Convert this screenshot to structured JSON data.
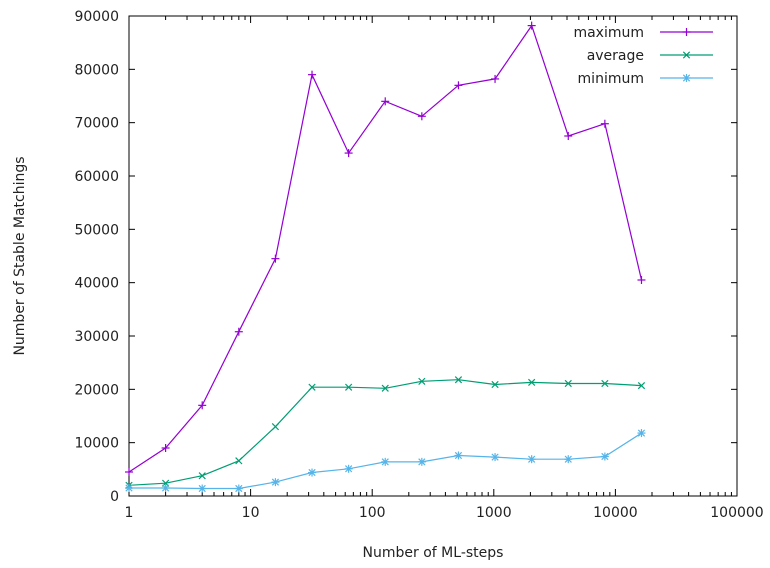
{
  "chart_data": {
    "type": "line",
    "xscale": "log",
    "title": "",
    "xlabel": "Number of ML-steps",
    "ylabel": "Number of Stable Matchings",
    "xlim": [
      1,
      100000
    ],
    "ylim": [
      0,
      90000
    ],
    "xticks": [
      1,
      10,
      100,
      1000,
      10000,
      100000
    ],
    "xtick_labels": [
      "1",
      "10",
      "100",
      "1000",
      "10000",
      "100000"
    ],
    "yticks": [
      0,
      10000,
      20000,
      30000,
      40000,
      50000,
      60000,
      70000,
      80000,
      90000
    ],
    "ytick_labels": [
      "0",
      "10000",
      "20000",
      "30000",
      "40000",
      "50000",
      "60000",
      "70000",
      "80000",
      "90000"
    ],
    "grid": false,
    "legend_position": "top-right",
    "x": [
      1,
      2,
      4,
      8,
      16,
      32,
      64,
      128,
      256,
      512,
      1024,
      2048,
      4096,
      8192,
      16384
    ],
    "series": [
      {
        "name": "maximum",
        "color": "#9400d3",
        "marker": "plus",
        "values": [
          4500,
          9000,
          17000,
          30800,
          44500,
          79000,
          64300,
          74000,
          71200,
          77000,
          78200,
          88200,
          67500,
          69800,
          40500
        ]
      },
      {
        "name": "average",
        "color": "#009e73",
        "marker": "cross",
        "values": [
          2000,
          2400,
          3800,
          6600,
          13000,
          20400,
          20400,
          20200,
          21500,
          21800,
          20900,
          21300,
          21100,
          21100,
          20700
        ]
      },
      {
        "name": "minimum",
        "color": "#56b4e9",
        "marker": "star",
        "values": [
          1500,
          1500,
          1400,
          1400,
          2600,
          4400,
          5100,
          6400,
          6400,
          7600,
          7300,
          6900,
          6900,
          7400,
          11800
        ]
      }
    ]
  }
}
